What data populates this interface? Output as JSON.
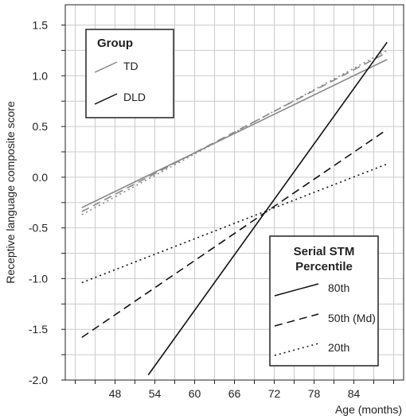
{
  "chart_data": {
    "type": "line",
    "title": "",
    "xlabel": "Age (months)",
    "ylabel": "Receptive language composite score",
    "x_ticks": [
      48,
      54,
      60,
      66,
      72,
      78,
      84
    ],
    "y_ticks": [
      -2.0,
      -1.5,
      -1.0,
      -0.5,
      0.0,
      0.5,
      1.0,
      1.5
    ],
    "y_tick_labels": [
      "-2.0",
      "-1.5",
      "-1.0",
      "-0.5",
      "0.0",
      "0.5",
      "1.0",
      "1.5"
    ],
    "xlim": [
      40.5,
      91.5
    ],
    "ylim": [
      -2.0,
      1.7
    ],
    "grid": true,
    "legends": [
      {
        "title": "Group",
        "position": "top-left",
        "entries": [
          {
            "label": "TD",
            "color": "#888888",
            "dash": "solid"
          },
          {
            "label": "DLD",
            "color": "#111111",
            "dash": "solid"
          }
        ]
      },
      {
        "title_lines": [
          "Serial STM",
          "Percentile"
        ],
        "position": "bottom-right",
        "entries": [
          {
            "label": "80th",
            "color": "#111111",
            "dash": "solid"
          },
          {
            "label": "50th (Md)",
            "color": "#111111",
            "dash": "dashed"
          },
          {
            "label": "20th",
            "color": "#111111",
            "dash": "dotted"
          }
        ]
      }
    ],
    "series": [
      {
        "group": "TD",
        "percentile": "80th",
        "style": "solid",
        "color": "#888888",
        "x": [
          43,
          89
        ],
        "y": [
          -0.3,
          1.16
        ]
      },
      {
        "group": "TD",
        "percentile": "50th (Md)",
        "style": "dashed",
        "color": "#888888",
        "x": [
          43,
          89
        ],
        "y": [
          -0.34,
          1.23
        ]
      },
      {
        "group": "TD",
        "percentile": "20th",
        "style": "dotted",
        "color": "#888888",
        "x": [
          43,
          89
        ],
        "y": [
          -0.37,
          1.25
        ]
      },
      {
        "group": "DLD",
        "percentile": "80th",
        "style": "solid",
        "color": "#111111",
        "x": [
          53,
          89
        ],
        "y": [
          -1.95,
          1.33
        ]
      },
      {
        "group": "DLD",
        "percentile": "50th (Md)",
        "style": "dashed",
        "color": "#111111",
        "x": [
          43,
          89
        ],
        "y": [
          -1.58,
          0.47
        ]
      },
      {
        "group": "DLD",
        "percentile": "20th",
        "style": "dotted",
        "color": "#111111",
        "x": [
          43,
          89
        ],
        "y": [
          -1.04,
          0.13
        ]
      }
    ]
  }
}
